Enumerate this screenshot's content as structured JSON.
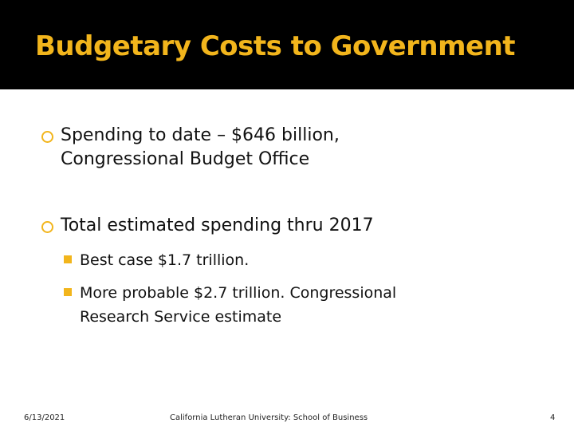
{
  "title": "Budgetary Costs to Government",
  "bullets": [
    {
      "text": "Spending to date – $646 billion, Congressional Budget Office"
    },
    {
      "text": "Total estimated spending thru 2017",
      "subbullets": [
        "Best case $1.7 trillion.",
        "More probable $2.7 trillion. Congressional Research Service estimate"
      ]
    }
  ],
  "footer": {
    "date": "6/13/2021",
    "center": "California Lutheran University: School of Business",
    "page": "4"
  }
}
